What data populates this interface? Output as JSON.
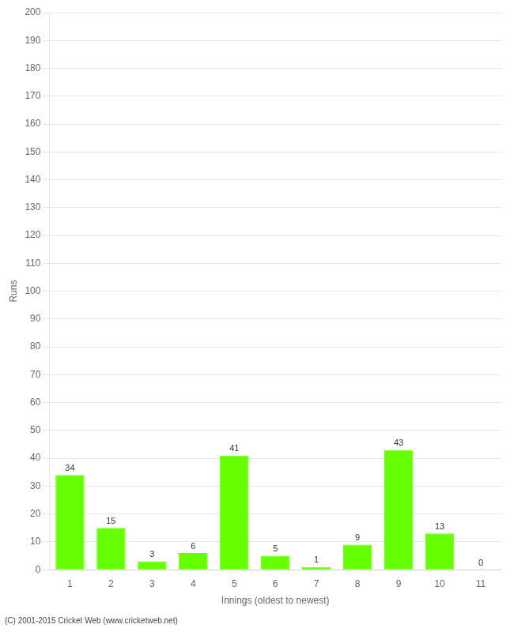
{
  "chart_data": {
    "type": "bar",
    "categories": [
      1,
      2,
      3,
      4,
      5,
      6,
      7,
      8,
      9,
      10,
      11
    ],
    "values": [
      34,
      15,
      3,
      6,
      41,
      5,
      1,
      9,
      43,
      13,
      0
    ],
    "color": "#66ff00",
    "xlabel": "Innings (oldest to newest)",
    "ylabel": "Runs",
    "ylim": [
      0,
      200
    ],
    "yticks": [
      0,
      10,
      20,
      30,
      40,
      50,
      60,
      70,
      80,
      90,
      100,
      110,
      120,
      130,
      140,
      150,
      160,
      170,
      180,
      190,
      200
    ],
    "grid": true,
    "data_labels": true,
    "footer": "(C) 2001-2015 Cricket Web (www.cricketweb.net)"
  }
}
